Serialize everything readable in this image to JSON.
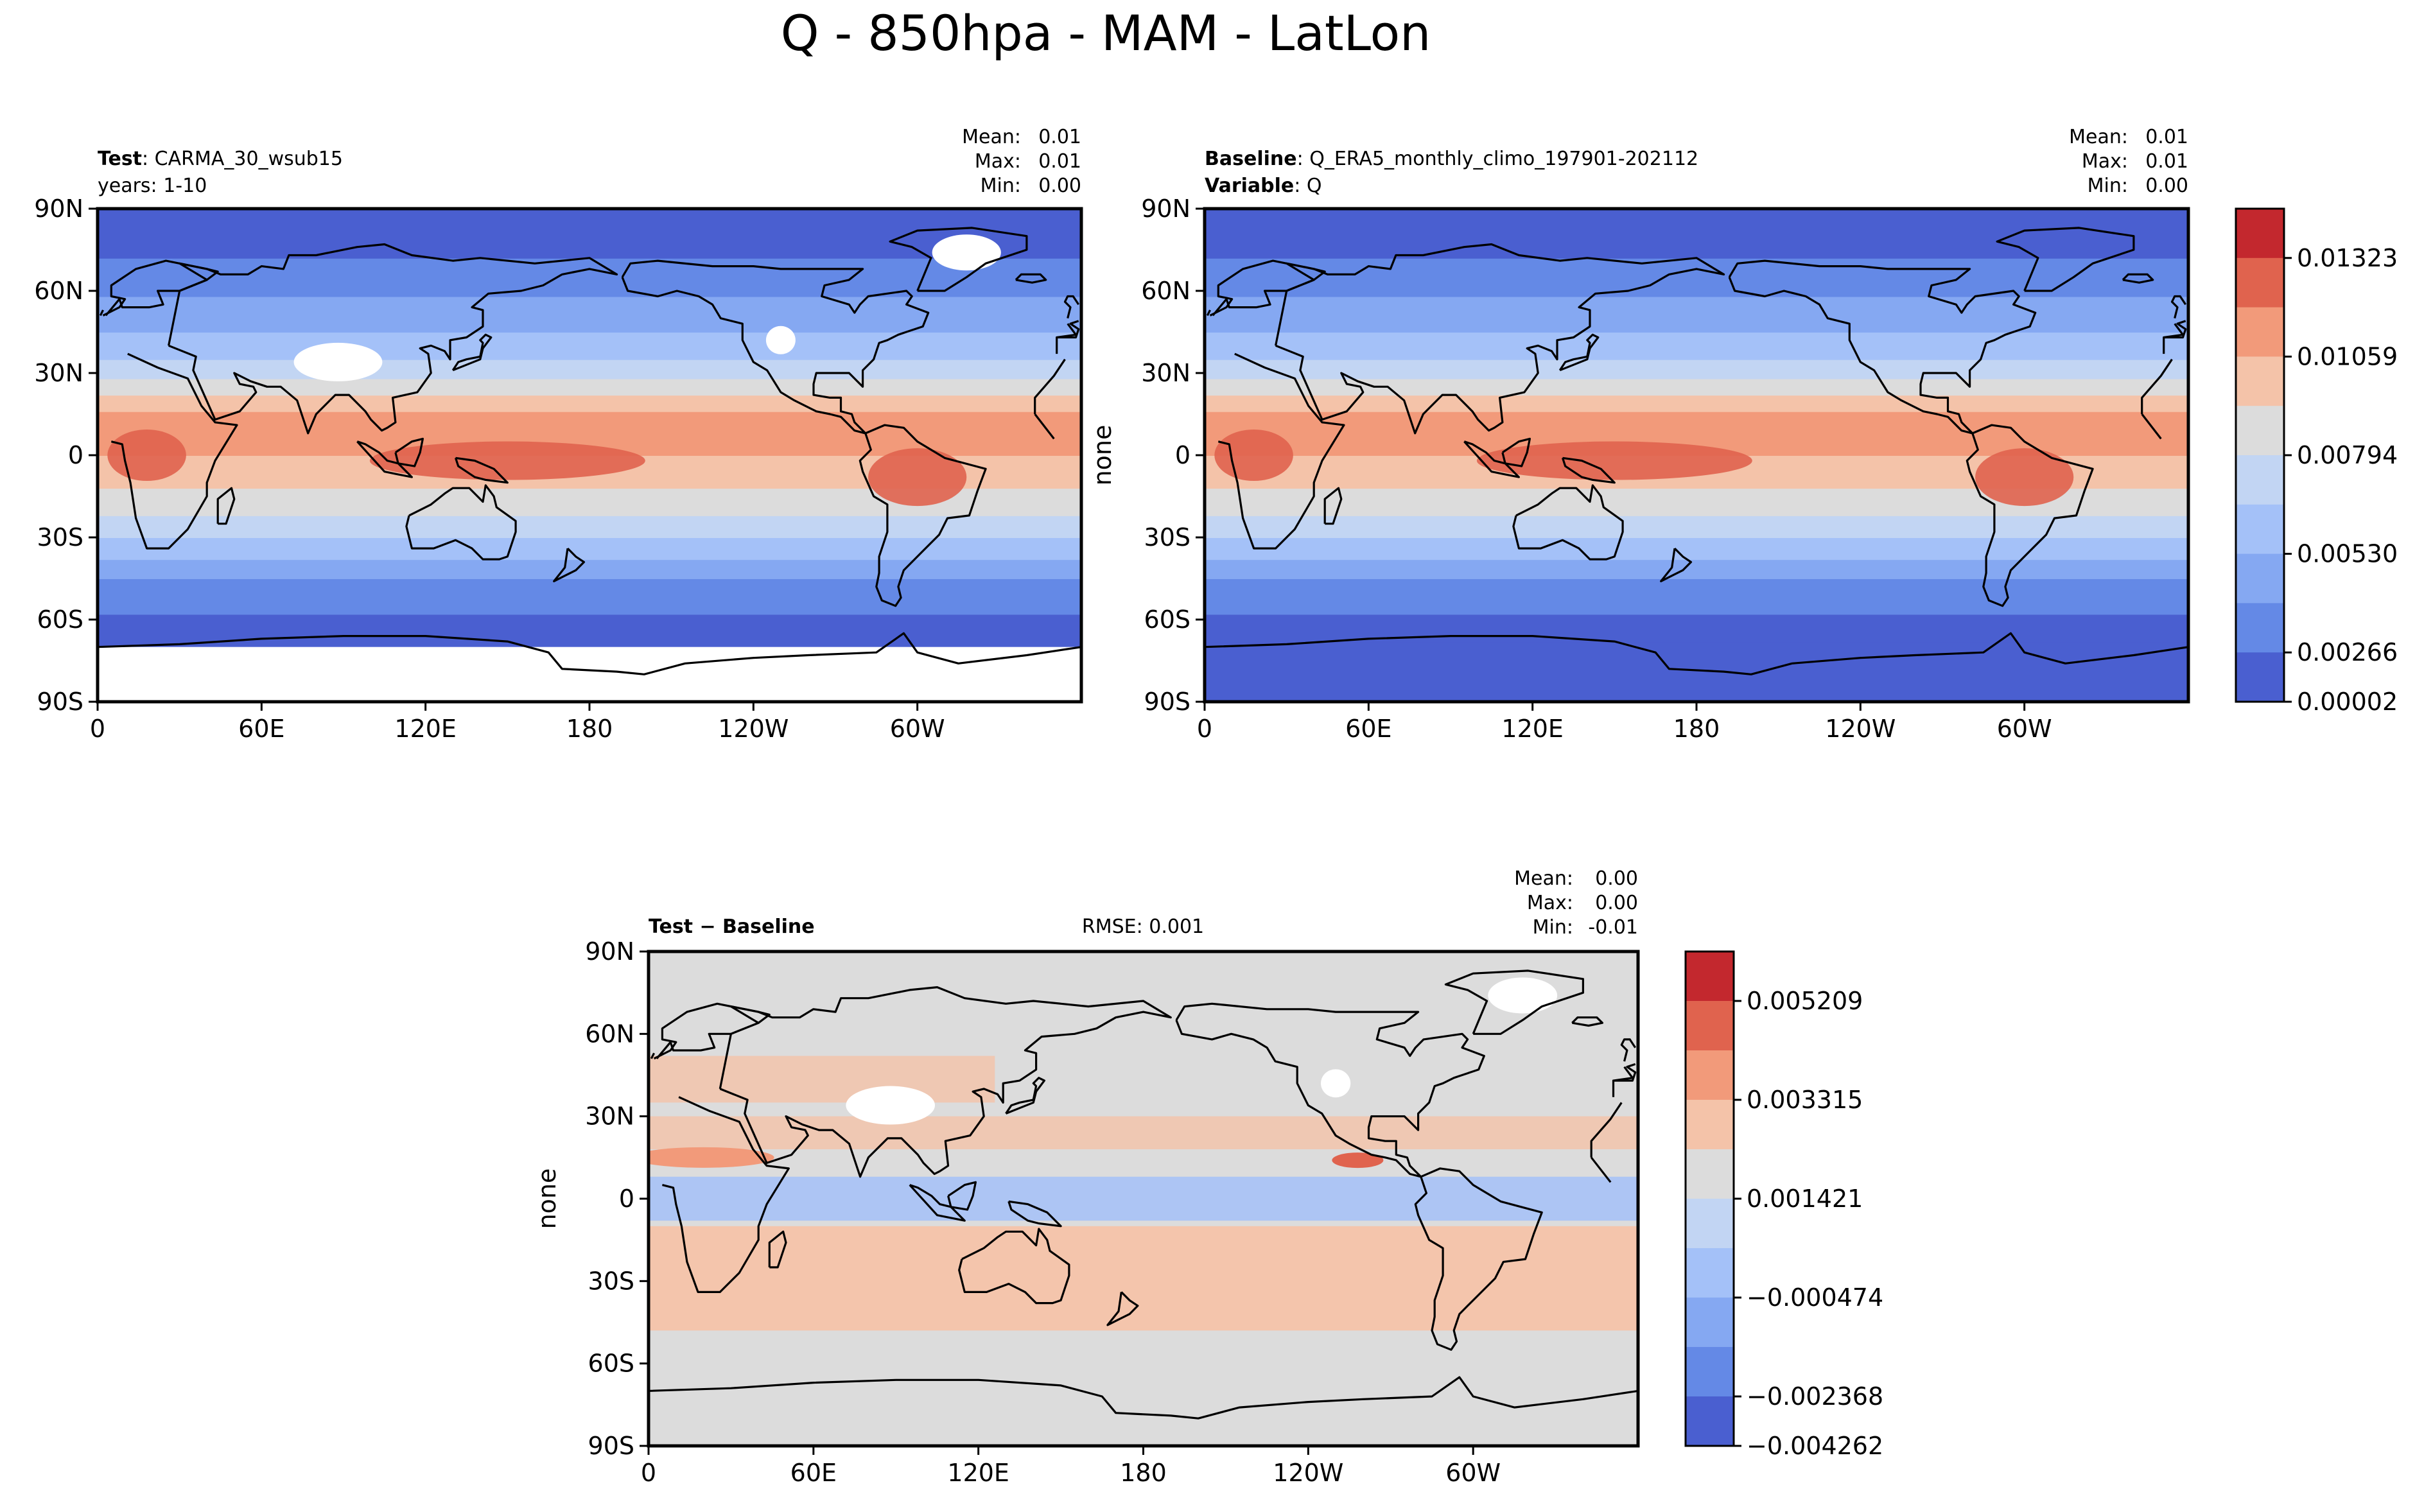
{
  "figure": {
    "title": "Q - 850hpa - MAM - LatLon"
  },
  "chart_data": [
    {
      "type": "contour-map",
      "panel": "test",
      "label_bold": "Test",
      "label_text": ": CARMA_30_wsub15",
      "label2_text": "years: 1-10",
      "stats": {
        "mean": "0.01",
        "max": "0.01",
        "min": "0.00"
      },
      "stat_labels": {
        "mean": "Mean:",
        "max": "Max:",
        "min": "Min:"
      },
      "ylabel": "",
      "xticks": [
        "0",
        "60E",
        "120E",
        "180",
        "120W",
        "60W"
      ],
      "yticks": [
        "90N",
        "60N",
        "30N",
        "0",
        "30S",
        "60S",
        "90S"
      ],
      "lon_range": [
        0,
        360
      ],
      "lat_range": [
        -90,
        90
      ],
      "zonal_profile": [
        {
          "lat": -90,
          "level": -1
        },
        {
          "lat": -70,
          "level": 0
        },
        {
          "lat": -58,
          "level": 1
        },
        {
          "lat": -45,
          "level": 2
        },
        {
          "lat": -38,
          "level": 3
        },
        {
          "lat": -30,
          "level": 4
        },
        {
          "lat": -22,
          "level": 5
        },
        {
          "lat": -12,
          "level": 6
        },
        {
          "lat": 0,
          "level": 7
        },
        {
          "lat": 10,
          "level": 7
        },
        {
          "lat": 16,
          "level": 6
        },
        {
          "lat": 22,
          "level": 5
        },
        {
          "lat": 28,
          "level": 4
        },
        {
          "lat": 35,
          "level": 3
        },
        {
          "lat": 45,
          "level": 2
        },
        {
          "lat": 58,
          "level": 1
        },
        {
          "lat": 72,
          "level": 0
        },
        {
          "lat": 90,
          "level": 0
        }
      ]
    },
    {
      "type": "contour-map",
      "panel": "baseline",
      "label_bold": "Baseline",
      "label_text": ": Q_ERA5_monthly_climo_197901-202112",
      "label2_bold": "Variable",
      "label2_text": ": Q",
      "stats": {
        "mean": "0.01",
        "max": "0.01",
        "min": "0.00"
      },
      "stat_labels": {
        "mean": "Mean:",
        "max": "Max:",
        "min": "Min:"
      },
      "ylabel": "none",
      "xticks": [
        "0",
        "60E",
        "120E",
        "180",
        "120W",
        "60W"
      ],
      "yticks": [
        "90N",
        "60N",
        "30N",
        "0",
        "30S",
        "60S",
        "90S"
      ],
      "lon_range": [
        0,
        360
      ],
      "lat_range": [
        -90,
        90
      ],
      "colorbar": {
        "ticks": [
          "0.01323",
          "0.01059",
          "0.00794",
          "0.00530",
          "0.00266",
          "0.00002"
        ],
        "colors": [
          "#c3282e",
          "#e0634e",
          "#f29a7a",
          "#f4c3a9",
          "#dcdcdc",
          "#c2d5f3",
          "#a4c1f8",
          "#85a8f2",
          "#6489e6",
          "#4a5fd0"
        ]
      },
      "zonal_profile": [
        {
          "lat": -90,
          "level": 0
        },
        {
          "lat": -68,
          "level": 0
        },
        {
          "lat": -58,
          "level": 1
        },
        {
          "lat": -45,
          "level": 2
        },
        {
          "lat": -38,
          "level": 3
        },
        {
          "lat": -30,
          "level": 4
        },
        {
          "lat": -22,
          "level": 5
        },
        {
          "lat": -12,
          "level": 6
        },
        {
          "lat": 0,
          "level": 7
        },
        {
          "lat": 10,
          "level": 7
        },
        {
          "lat": 16,
          "level": 6
        },
        {
          "lat": 22,
          "level": 5
        },
        {
          "lat": 28,
          "level": 4
        },
        {
          "lat": 35,
          "level": 3
        },
        {
          "lat": 45,
          "level": 2
        },
        {
          "lat": 58,
          "level": 1
        },
        {
          "lat": 72,
          "level": 0
        },
        {
          "lat": 90,
          "level": 0
        }
      ]
    },
    {
      "type": "contour-map",
      "panel": "difference",
      "label_bold": "Test − Baseline",
      "rmse": "RMSE: 0.001",
      "stats": {
        "mean": "0.00",
        "max": "0.00",
        "min": "-0.01"
      },
      "stat_labels": {
        "mean": "Mean:",
        "max": "Max:",
        "min": "Min:"
      },
      "ylabel": "none",
      "xticks": [
        "0",
        "60E",
        "120E",
        "180",
        "120W",
        "60W"
      ],
      "yticks": [
        "90N",
        "60N",
        "30N",
        "0",
        "30S",
        "60S",
        "90S"
      ],
      "lon_range": [
        0,
        360
      ],
      "lat_range": [
        -90,
        90
      ],
      "colorbar": {
        "ticks": [
          "0.005209",
          "0.003315",
          "0.001421",
          "−0.000474",
          "−0.002368",
          "−0.004262"
        ],
        "colors": [
          "#c3282e",
          "#e0634e",
          "#f29a7a",
          "#f4c3a9",
          "#dcdcdc",
          "#c2d5f3",
          "#a4c1f8",
          "#85a8f2",
          "#6489e6",
          "#4a5fd0"
        ]
      }
    }
  ],
  "colors": {
    "missing": "#ffffff",
    "coast": "#000000",
    "neutral": "#dcdcdc"
  }
}
